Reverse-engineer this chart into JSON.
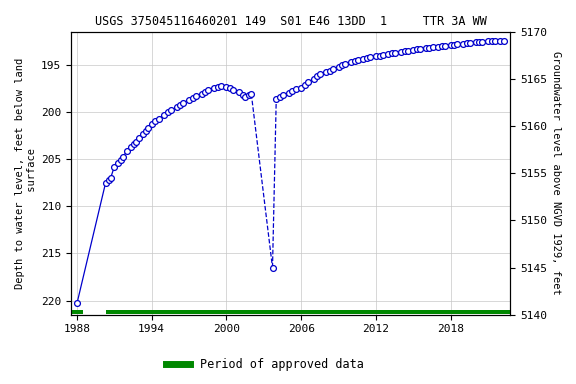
{
  "title": "USGS 375045116460201 149  S01 E46 13DD  1     TTR 3A WW",
  "ylabel_left": "Depth to water level, feet below land\n surface",
  "ylabel_right": "Groundwater level above NGVD 1929, feet",
  "ylim_left": [
    221.5,
    191.5
  ],
  "ylim_right": [
    5140,
    5170
  ],
  "xlim": [
    1987.5,
    2022.8
  ],
  "xticks": [
    1988,
    1994,
    2000,
    2006,
    2012,
    2018
  ],
  "yticks_left": [
    195,
    200,
    205,
    210,
    215,
    220
  ],
  "yticks_right": [
    5140,
    5145,
    5150,
    5155,
    5160,
    5165,
    5170
  ],
  "background_color": "#ffffff",
  "grid_color": "#c8c8c8",
  "data_color": "#0000cc",
  "legend_label": "Period of approved data",
  "legend_color": "#008800",
  "main_segment1": {
    "years": [
      1988.0,
      1990.3,
      1990.55,
      1990.7,
      1991.0,
      1991.3,
      1991.55,
      1991.7,
      1992.0,
      1992.3,
      1992.55,
      1992.7,
      1993.0,
      1993.3,
      1993.55,
      1993.7,
      1994.0,
      1994.3,
      1994.55,
      1995.0,
      1995.3,
      1995.55,
      1996.0,
      1996.3,
      1996.55,
      1997.0,
      1997.3,
      1997.55,
      1998.0,
      1998.3,
      1998.55,
      1999.0,
      1999.3,
      1999.55,
      2000.0,
      2000.3,
      2000.55,
      2001.0,
      2001.3,
      2001.5,
      2001.8,
      2002.0
    ],
    "depth": [
      220.3,
      207.5,
      207.2,
      207.0,
      205.8,
      205.4,
      205.1,
      204.8,
      204.1,
      203.7,
      203.4,
      203.2,
      202.7,
      202.3,
      202.0,
      201.7,
      201.3,
      201.0,
      200.7,
      200.3,
      200.0,
      199.8,
      199.5,
      199.2,
      199.0,
      198.7,
      198.5,
      198.3,
      198.1,
      197.9,
      197.7,
      197.5,
      197.3,
      197.2,
      197.3,
      197.5,
      197.7,
      197.9,
      198.2,
      198.4,
      198.2,
      198.1
    ]
  },
  "spike_segment": {
    "years": [
      2002.0,
      2003.7
    ],
    "depth": [
      198.1,
      216.5
    ]
  },
  "main_segment2": {
    "years": [
      2003.7,
      2004.0,
      2004.3,
      2004.55,
      2005.0,
      2005.3,
      2005.55,
      2006.0,
      2006.3,
      2006.55,
      2007.0,
      2007.3,
      2007.55,
      2008.0,
      2008.3,
      2008.55,
      2009.0,
      2009.3,
      2009.55,
      2010.0,
      2010.3,
      2010.55,
      2011.0,
      2011.3,
      2011.55,
      2012.0,
      2012.3,
      2012.55,
      2013.0,
      2013.3,
      2013.55,
      2014.0,
      2014.3,
      2014.55,
      2015.0,
      2015.3,
      2015.55,
      2016.0,
      2016.3,
      2016.55,
      2017.0,
      2017.3,
      2017.55,
      2018.0,
      2018.3,
      2018.55,
      2019.0,
      2019.3,
      2019.55,
      2020.0,
      2020.3,
      2020.55,
      2021.0,
      2021.3,
      2021.55,
      2022.0,
      2022.3
    ],
    "depth": [
      216.5,
      198.6,
      198.4,
      198.2,
      198.0,
      197.8,
      197.6,
      197.4,
      197.1,
      196.8,
      196.5,
      196.2,
      196.0,
      195.8,
      195.6,
      195.4,
      195.2,
      195.0,
      194.9,
      194.7,
      194.6,
      194.5,
      194.4,
      194.3,
      194.2,
      194.1,
      194.0,
      193.9,
      193.8,
      193.7,
      193.7,
      193.6,
      193.5,
      193.5,
      193.4,
      193.3,
      193.3,
      193.2,
      193.2,
      193.1,
      193.1,
      193.0,
      193.0,
      192.9,
      192.9,
      192.8,
      192.8,
      192.7,
      192.7,
      192.6,
      192.6,
      192.6,
      192.5,
      192.5,
      192.5,
      192.5,
      192.5
    ]
  }
}
